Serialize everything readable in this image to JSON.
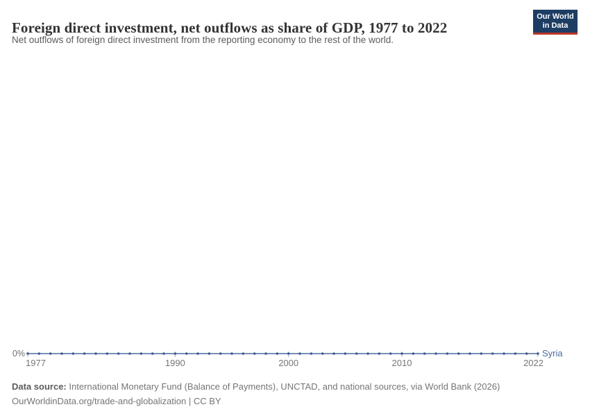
{
  "header": {
    "title": "Foreign direct investment, net outflows as share of GDP, 1977 to 2022",
    "subtitle": "Net outflows of foreign direct investment from the reporting economy to the rest of the world.",
    "logo": {
      "line1": "Our World",
      "line2": "in Data"
    }
  },
  "chart_data": {
    "type": "line",
    "title": "Foreign direct investment, net outflows as share of GDP, 1977 to 2022",
    "xlabel": "",
    "ylabel": "",
    "xlim": [
      1977,
      2022
    ],
    "grid": false,
    "legend_position": "end-of-line",
    "y_axis": {
      "tick_label": "0%",
      "tick_value": 0
    },
    "x_ticks": [
      1977,
      1990,
      2000,
      2010,
      2022
    ],
    "series": [
      {
        "name": "Syria",
        "color": "#4C6A9C",
        "dot_color": "#3d5c94",
        "x": [
          1977,
          1978,
          1979,
          1980,
          1981,
          1982,
          1983,
          1984,
          1985,
          1986,
          1987,
          1988,
          1989,
          1990,
          1991,
          1992,
          1993,
          1994,
          1995,
          1996,
          1997,
          1998,
          1999,
          2000,
          2001,
          2002,
          2003,
          2004,
          2005,
          2006,
          2007,
          2008,
          2009,
          2010,
          2011,
          2012,
          2013,
          2014,
          2015,
          2016,
          2017,
          2018,
          2019,
          2020,
          2021,
          2022
        ],
        "values": [
          0,
          0,
          0,
          0,
          0,
          0,
          0,
          0,
          0,
          0,
          0,
          0,
          0,
          0,
          0,
          0,
          0,
          0,
          0,
          0,
          0,
          0,
          0,
          0,
          0,
          0,
          0,
          0,
          0,
          0,
          0,
          0,
          0,
          0,
          0,
          0,
          0,
          0,
          0,
          0,
          0,
          0,
          0,
          0,
          0,
          0
        ]
      }
    ]
  },
  "footer": {
    "source_label": "Data source:",
    "source_text": "International Monetary Fund (Balance of Payments), UNCTAD, and national sources, via World Bank (2026)",
    "note": "OurWorldinData.org/trade-and-globalization | CC BY"
  },
  "colors": {
    "line": "#4C6A9C",
    "logo_bg": "#1d3d63",
    "logo_accent": "#c0392b",
    "title_text": "#333333"
  }
}
